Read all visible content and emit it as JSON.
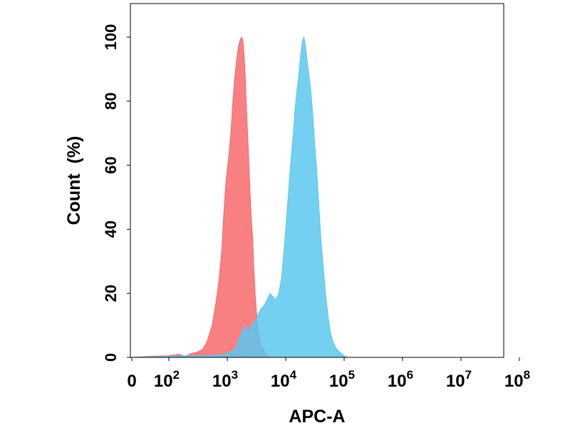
{
  "chart_data": {
    "type": "area",
    "xlabel": "APC-A",
    "ylabel": "Count  (%)",
    "x_scale": "biexponential",
    "xlim": [
      0,
      100000000
    ],
    "ylim": [
      0,
      110
    ],
    "grid": false,
    "legend": "none",
    "x_ticks": [
      {
        "value": 0,
        "base": "0",
        "exp": ""
      },
      {
        "value": 100,
        "base": "10",
        "exp": "2"
      },
      {
        "value": 1000,
        "base": "10",
        "exp": "3"
      },
      {
        "value": 10000,
        "base": "10",
        "exp": "4"
      },
      {
        "value": 100000,
        "base": "10",
        "exp": "5"
      },
      {
        "value": 1000000,
        "base": "10",
        "exp": "6"
      },
      {
        "value": 10000000,
        "base": "10",
        "exp": "7"
      },
      {
        "value": 100000000,
        "base": "10",
        "exp": "8"
      }
    ],
    "y_ticks": [
      0,
      20,
      40,
      60,
      80,
      100
    ],
    "series": [
      {
        "color": "#f76a6c",
        "fill_opacity": 0.85,
        "points": [
          [
            0,
            0
          ],
          [
            60,
            0.4
          ],
          [
            100,
            0.5
          ],
          [
            150,
            1
          ],
          [
            190,
            0.3
          ],
          [
            240,
            1.2
          ],
          [
            300,
            1.6
          ],
          [
            380,
            2.5
          ],
          [
            450,
            5
          ],
          [
            550,
            10
          ],
          [
            650,
            18
          ],
          [
            720,
            24
          ],
          [
            800,
            33
          ],
          [
            880,
            46
          ],
          [
            950,
            55
          ],
          [
            1050,
            62
          ],
          [
            1150,
            70
          ],
          [
            1250,
            80
          ],
          [
            1350,
            88
          ],
          [
            1450,
            93
          ],
          [
            1550,
            97
          ],
          [
            1650,
            99
          ],
          [
            1750,
            100
          ],
          [
            1850,
            99
          ],
          [
            1950,
            94
          ],
          [
            2050,
            86
          ],
          [
            2150,
            76
          ],
          [
            2250,
            68
          ],
          [
            2350,
            60
          ],
          [
            2450,
            52
          ],
          [
            2550,
            45
          ],
          [
            2700,
            38
          ],
          [
            2850,
            28
          ],
          [
            3000,
            20
          ],
          [
            3200,
            13
          ],
          [
            3400,
            8
          ],
          [
            3600,
            6
          ],
          [
            3800,
            4
          ],
          [
            4000,
            3
          ],
          [
            4300,
            2
          ],
          [
            4600,
            1
          ],
          [
            5000,
            0.5
          ],
          [
            5500,
            0
          ]
        ]
      },
      {
        "color": "#5bc8ef",
        "fill_opacity": 0.85,
        "points": [
          [
            0,
            0
          ],
          [
            100,
            0.3
          ],
          [
            180,
            0.5
          ],
          [
            300,
            0.5
          ],
          [
            500,
            0.5
          ],
          [
            800,
            0.8
          ],
          [
            1000,
            1.2
          ],
          [
            1200,
            2
          ],
          [
            1400,
            3
          ],
          [
            1600,
            6
          ],
          [
            1800,
            8
          ],
          [
            2000,
            10
          ],
          [
            2200,
            9
          ],
          [
            2400,
            8
          ],
          [
            2600,
            10
          ],
          [
            2800,
            11
          ],
          [
            3000,
            11
          ],
          [
            3300,
            13
          ],
          [
            3700,
            15
          ],
          [
            4200,
            16
          ],
          [
            4800,
            18
          ],
          [
            5400,
            20
          ],
          [
            6000,
            19
          ],
          [
            6800,
            18
          ],
          [
            7600,
            20
          ],
          [
            8500,
            25
          ],
          [
            9500,
            35
          ],
          [
            10500,
            45
          ],
          [
            11500,
            55
          ],
          [
            12500,
            63
          ],
          [
            13500,
            70
          ],
          [
            14500,
            78
          ],
          [
            15500,
            83
          ],
          [
            16500,
            87
          ],
          [
            17500,
            92
          ],
          [
            18500,
            96
          ],
          [
            19500,
            99
          ],
          [
            20500,
            100
          ],
          [
            21500,
            98
          ],
          [
            22500,
            95
          ],
          [
            23500,
            92
          ],
          [
            25000,
            88
          ],
          [
            27000,
            83
          ],
          [
            29000,
            76
          ],
          [
            31000,
            68
          ],
          [
            34000,
            58
          ],
          [
            37000,
            47
          ],
          [
            40000,
            37
          ],
          [
            44000,
            28
          ],
          [
            48000,
            20
          ],
          [
            53000,
            13
          ],
          [
            58000,
            8
          ],
          [
            64000,
            5
          ],
          [
            72000,
            3
          ],
          [
            85000,
            1.5
          ],
          [
            100000,
            0.5
          ],
          [
            115000,
            0
          ]
        ]
      }
    ]
  }
}
